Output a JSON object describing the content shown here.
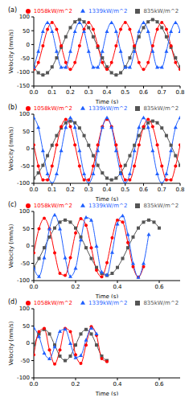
{
  "chart_data": [
    {
      "type": "line",
      "title": "(a)",
      "x_label": "Time (s)",
      "y_label": "Velocity (mm/s)",
      "legend": "top",
      "x": [
        0,
        0.025,
        0.05,
        0.075,
        0.1,
        0.125,
        0.15,
        0.175,
        0.2,
        0.225,
        0.25,
        0.275,
        0.3,
        0.325,
        0.35,
        0.375,
        0.4,
        0.425,
        0.45,
        0.475,
        0.5,
        0.525,
        0.55,
        0.575,
        0.6,
        0.625,
        0.65,
        0.675,
        0.7,
        0.725,
        0.75,
        0.775,
        0.8
      ],
      "xlim": [
        0,
        0.8
      ],
      "xticks": [
        {
          "value": 0,
          "label": "0.0"
        },
        0.1,
        0.2,
        0.3,
        0.4,
        0.5,
        0.6,
        0.7,
        0.8
      ],
      "ylim": [
        -150,
        100
      ],
      "yticks": [
        -150,
        -100,
        -50,
        0,
        50,
        100
      ],
      "series": [
        {
          "name": "835kW/m^2",
          "color": "#555555",
          "marker": "square",
          "values": [
            -81,
            -102,
            -110,
            -102,
            -81,
            -48,
            -10,
            28,
            61,
            82,
            90,
            82,
            61,
            28,
            -10,
            -48,
            -81,
            -102,
            -110,
            -102,
            -81,
            -48,
            -10,
            28,
            61,
            82,
            90,
            82,
            61,
            28,
            -10,
            -48,
            -81
          ]
        },
        {
          "name": "1058kW/m^2",
          "color": "#ff0000",
          "marker": "circle",
          "values": [
            -90,
            -65,
            -5,
            55,
            80,
            55,
            -5,
            -65,
            -90,
            -65,
            -5,
            55,
            80,
            55,
            -5,
            -65,
            -90,
            -65,
            -5,
            55,
            80,
            55,
            -5,
            -65,
            -90,
            -65,
            -5,
            55,
            80,
            55,
            -5,
            -65,
            -90
          ]
        },
        {
          "name": "1339kW/m^2",
          "color": "#1f5fff",
          "marker": "triangle",
          "values": [
            -82,
            -24,
            48,
            80,
            48,
            -24,
            -82,
            -82,
            -24,
            48,
            80,
            48,
            -24,
            -82,
            -82,
            -24,
            48,
            80,
            48,
            -24,
            -82,
            -82,
            -24,
            48,
            80,
            48,
            -24,
            -82,
            -82,
            -24,
            48,
            80,
            48
          ]
        }
      ]
    },
    {
      "type": "line",
      "title": "(b)",
      "x_label": "Time (s)",
      "y_label": "Velocity (mm/s)",
      "legend": "top",
      "x": [
        0,
        0.025,
        0.05,
        0.075,
        0.1,
        0.125,
        0.15,
        0.175,
        0.2,
        0.225,
        0.25,
        0.275,
        0.3,
        0.325,
        0.35,
        0.375,
        0.4,
        0.425,
        0.45,
        0.475,
        0.5,
        0.525,
        0.55,
        0.575,
        0.6,
        0.625,
        0.65,
        0.675,
        0.7,
        0.725,
        0.75,
        0.775,
        0.8
      ],
      "xlim": [
        0,
        0.8
      ],
      "xticks": [
        {
          "value": 0,
          "label": "0.0"
        },
        0.1,
        0.2,
        0.3,
        0.4,
        0.5,
        0.6,
        0.7,
        0.8
      ],
      "ylim": [
        -100,
        100
      ],
      "yticks": [
        -100,
        -50,
        0,
        50,
        100
      ],
      "series": [
        {
          "name": "835kW/m^2",
          "color": "#555555",
          "marker": "square",
          "values": [
            -85,
            -70,
            -48,
            -20,
            10,
            38,
            60,
            75,
            80,
            75,
            60,
            38,
            10,
            -20,
            -48,
            -70,
            -85,
            -90,
            -85,
            -70,
            -48,
            -20,
            10,
            38,
            60,
            75,
            80,
            75,
            60,
            38,
            10,
            -20,
            -48
          ]
        },
        {
          "name": "1058kW/m^2",
          "color": "#ff0000",
          "marker": "circle",
          "values": [
            11,
            -50,
            -90,
            -90,
            -50,
            11,
            64,
            85,
            64,
            11,
            -50,
            -90,
            -90,
            -50,
            11,
            64,
            85,
            64,
            11,
            -50,
            -90,
            -90,
            -50,
            11,
            64,
            85,
            64,
            11,
            -50,
            -90,
            -90,
            -50,
            11
          ]
        },
        {
          "name": "1339kW/m^2",
          "color": "#1f5fff",
          "marker": "triangle",
          "values": [
            90,
            62,
            -5,
            -72,
            -100,
            -72,
            -5,
            62,
            90,
            62,
            -5,
            -72,
            -100,
            -72,
            -5,
            62,
            90,
            62,
            -5,
            -72,
            -100,
            -72,
            -5,
            62,
            90,
            62,
            -5,
            -72,
            -100,
            -72,
            -5,
            62,
            90
          ]
        }
      ]
    },
    {
      "type": "line",
      "title": "(c)",
      "x_label": "Time (s)",
      "y_label": "Velocity (mm/s)",
      "legend": "top",
      "x": [
        0,
        0.025,
        0.05,
        0.075,
        0.1,
        0.125,
        0.15,
        0.175,
        0.2,
        0.225,
        0.25,
        0.275,
        0.3,
        0.325,
        0.35,
        0.375,
        0.4,
        0.425,
        0.45,
        0.475,
        0.5,
        0.525,
        0.55,
        0.575,
        0.6
      ],
      "xlim": [
        0,
        0.7
      ],
      "xticks": [
        {
          "value": 0,
          "label": "0.0"
        },
        0.2,
        0.4,
        0.6
      ],
      "ylim": [
        -100,
        100
      ],
      "yticks": [
        -100,
        -50,
        0,
        50,
        100
      ],
      "series": [
        {
          "name": "835kW/m^2",
          "color": "#555555",
          "marker": "square",
          "values": [
            -62,
            -36,
            -5,
            26,
            52,
            69,
            75,
            69,
            52,
            26,
            -5,
            -36,
            -62,
            -79,
            -85,
            -79,
            -62,
            -36,
            -5,
            26,
            52,
            69,
            75,
            69,
            52
          ]
        },
        {
          "name": "1058kW/m^2",
          "color": "#ff0000",
          "marker": "circle",
          "values": [
            -20,
            50,
            80,
            50,
            -20,
            -79,
            -85,
            -34,
            38,
            79,
            60,
            -5,
            -70,
            -89,
            -48,
            24,
            75,
            69,
            10,
            -60,
            -90,
            -60,
            null,
            null,
            null
          ]
        },
        {
          "name": "1339kW/m^2",
          "color": "#1f5fff",
          "marker": "triangle",
          "values": [
            -64,
            -88,
            -34,
            50,
            90,
            50,
            -34,
            -88,
            -64,
            18,
            83,
            75,
            0,
            -75,
            -83,
            -18,
            64,
            88,
            34,
            -50,
            -90,
            -50,
            34,
            null,
            null
          ]
        }
      ]
    },
    {
      "type": "line",
      "title": "(d)",
      "x_label": "Time (s)",
      "y_label": "Velocity (mm/s)",
      "legend": "top",
      "x": [
        0,
        0.025,
        0.05,
        0.075,
        0.1,
        0.125,
        0.15,
        0.175,
        0.2,
        0.225,
        0.25,
        0.275,
        0.3,
        0.325,
        0.35
      ],
      "xlim": [
        0,
        0.7
      ],
      "xticks": [
        {
          "value": 0,
          "label": "0.0"
        },
        0.2,
        0.4,
        0.6
      ],
      "ylim": [
        -100,
        100
      ],
      "yticks": [
        -100,
        -50,
        0,
        50,
        100
      ],
      "series": [
        {
          "name": "835kW/m^2",
          "color": "#555555",
          "marker": "square",
          "values": [
            -5,
            27,
            40,
            27,
            -5,
            -37,
            -50,
            -37,
            -5,
            27,
            40,
            27,
            -5,
            -37,
            -50
          ]
        },
        {
          "name": "1058kW/m^2",
          "color": "#ff0000",
          "marker": "circle",
          "values": [
            -33,
            34,
            43,
            -19,
            -60,
            -19,
            43,
            34,
            -33,
            -58,
            -5,
            48,
            23,
            -44,
            -53
          ]
        },
        {
          "name": "1339kW/m^2",
          "color": "#1f5fff",
          "marker": "triangle",
          "values": [
            45,
            20,
            -28,
            -44,
            -10,
            35,
            41,
            0,
            -41,
            -35,
            10,
            44,
            28,
            null,
            null
          ]
        }
      ]
    }
  ]
}
